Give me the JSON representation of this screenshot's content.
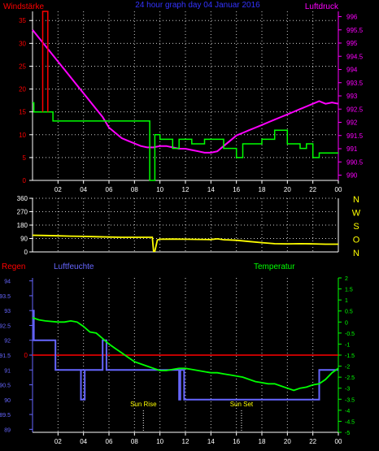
{
  "chart_data": [
    {
      "type": "line",
      "title": "24 hour graph day 04 Januar 2016",
      "left_axis_label": "Windstärke",
      "right_axis_label": "Luftdruck",
      "colors": {
        "wind": "#ff0000",
        "gust": "#00ff00",
        "pressure": "#ff00ff",
        "title": "#3333ff",
        "axis": "#ffffff"
      },
      "x_ticks": [
        "02",
        "04",
        "06",
        "08",
        "10",
        "12",
        "14",
        "16",
        "18",
        "20",
        "22",
        "00"
      ],
      "left_ticks": [
        "0",
        "5",
        "10",
        "15",
        "20",
        "25",
        "30",
        "35"
      ],
      "left_range": [
        0,
        37
      ],
      "right_ticks": [
        "990",
        "990.5",
        "991",
        "991.5",
        "992",
        "992.5",
        "993",
        "993.5",
        "994",
        "994.5",
        "995",
        "995.5",
        "996"
      ],
      "right_range": [
        989.8,
        996.2
      ],
      "x_range": [
        0,
        24
      ],
      "series": [
        {
          "key": "pressure",
          "x": [
            0,
            0.5,
            1,
            1.5,
            2,
            2.5,
            3,
            3.5,
            4,
            4.5,
            5,
            5.5,
            6,
            6.5,
            7,
            7.5,
            8,
            8.5,
            9,
            9.5,
            10,
            10.5,
            11,
            11.5,
            12,
            12.5,
            13,
            13.5,
            14,
            14.5,
            15,
            15.5,
            16,
            16.5,
            17,
            17.5,
            18,
            18.5,
            19,
            19.5,
            20,
            20.5,
            21,
            21.5,
            22,
            22.5,
            23,
            23.5,
            24
          ],
          "y": [
            995.5,
            995.2,
            994.9,
            994.6,
            994.3,
            994.0,
            993.7,
            993.4,
            993.1,
            992.8,
            992.5,
            992.2,
            991.8,
            991.6,
            991.4,
            991.3,
            991.2,
            991.1,
            991.05,
            991.05,
            991.1,
            991.1,
            991.05,
            991.0,
            991.0,
            990.95,
            990.9,
            990.85,
            990.85,
            990.9,
            991.1,
            991.3,
            991.5,
            991.6,
            991.7,
            991.8,
            991.9,
            992.0,
            992.1,
            992.2,
            992.3,
            992.4,
            992.5,
            992.6,
            992.7,
            992.8,
            992.7,
            992.75,
            992.7
          ]
        },
        {
          "key": "gust",
          "x": [
            0,
            0.1,
            0.1,
            1.6,
            1.6,
            9.2,
            9.2,
            9.6,
            9.6,
            10,
            10,
            11,
            11,
            11.5,
            11.5,
            12.5,
            12.5,
            13.5,
            13.5,
            15,
            15,
            16,
            16,
            16.5,
            16.5,
            18,
            18,
            19,
            19,
            20,
            20,
            21,
            21,
            21.5,
            21.5,
            22,
            22,
            22.5,
            22.5,
            24
          ],
          "y": [
            17,
            17,
            15,
            15,
            13,
            13,
            0,
            0,
            10,
            10,
            9,
            9,
            7,
            7,
            9,
            9,
            8,
            8,
            9,
            9,
            7,
            7,
            5,
            5,
            8,
            8,
            9,
            9,
            11,
            11,
            8,
            8,
            7,
            7,
            8,
            8,
            5,
            5,
            6,
            6
          ]
        },
        {
          "key": "wind",
          "x": [
            0.8,
            0.8,
            1.2,
            1.2
          ],
          "y": [
            15,
            37,
            37,
            15
          ]
        }
      ]
    },
    {
      "type": "line",
      "y_ticks": [
        "0",
        "90",
        "180",
        "270",
        "360"
      ],
      "y_range": [
        0,
        360
      ],
      "right_labels": [
        "N",
        "W",
        "S",
        "O",
        "N"
      ],
      "colors": {
        "line": "#ffff00",
        "letters": "#ffff00"
      },
      "series": [
        {
          "key": "direction",
          "x": [
            0,
            1,
            2,
            3,
            4,
            5,
            6,
            7,
            8,
            9,
            9.4,
            9.5,
            9.6,
            9.8,
            10,
            11,
            12,
            13,
            14,
            14.5,
            15,
            15.5,
            16,
            17,
            18,
            19,
            20,
            21,
            22,
            23,
            24
          ],
          "y": [
            112,
            110,
            108,
            106,
            104,
            102,
            100,
            98,
            98,
            98,
            98,
            5,
            5,
            80,
            85,
            86,
            85,
            84,
            83,
            88,
            82,
            80,
            78,
            70,
            62,
            55,
            54,
            55,
            54,
            52,
            52
          ]
        }
      ]
    },
    {
      "type": "line",
      "left_axis_label": "Regen",
      "humidity_label": "Luftfeuchte",
      "temperature_label": "Temperatur",
      "colors": {
        "rain": "#ff0000",
        "humidity": "#6666ff",
        "temperature": "#00ff00",
        "sun": "#ffff00"
      },
      "humidity_ticks": [
        "89",
        "89.5",
        "90",
        "90.5",
        "91",
        "91.5",
        "92",
        "92.5",
        "93",
        "93.5",
        "94"
      ],
      "humidity_range": [
        88.9,
        94.1
      ],
      "rain_tick": "0",
      "temperature_ticks": [
        "2",
        "1.5",
        "1",
        "0.5",
        "0",
        "-0.5",
        "-1",
        "-1.5",
        "-2",
        "-2.5",
        "-3",
        "-3.5",
        "-4",
        "-4.5",
        "-5"
      ],
      "temperature_range": [
        -5,
        2
      ],
      "sun_rise_label": "Sun Rise",
      "sun_set_label": "Sun Set",
      "sun_rise_hour": 8.7,
      "sun_set_hour": 16.4,
      "rain_value": 0,
      "series": [
        {
          "key": "humidity",
          "x": [
            0,
            0.1,
            0.1,
            1.8,
            1.8,
            5.5,
            5.5,
            5.8,
            5.8,
            6,
            6,
            11.5,
            11.5,
            11.6,
            11.6,
            11.9,
            11.9,
            22.5,
            22.5,
            24
          ],
          "y": [
            93,
            93,
            92,
            92,
            91,
            91,
            92,
            92,
            91,
            91,
            91,
            91,
            90,
            90,
            91,
            91,
            90,
            90,
            91,
            91
          ]
        },
        {
          "key": "humidity_spike",
          "x": [
            3.8,
            3.8,
            4.1,
            4.1
          ],
          "y": [
            91,
            90,
            90,
            91
          ]
        },
        {
          "key": "temperature",
          "x": [
            0,
            0.5,
            1,
            2,
            2.5,
            3,
            3.5,
            4,
            4.5,
            5,
            5.5,
            6,
            6.5,
            7,
            7.5,
            8,
            8.5,
            9,
            9.5,
            10,
            10.5,
            11,
            11.5,
            12,
            12.5,
            13,
            13.5,
            14,
            14.5,
            15,
            15.5,
            16,
            16.5,
            17,
            17.5,
            18,
            18.5,
            19,
            19.5,
            20,
            20.5,
            21,
            21.5,
            22,
            22.5,
            23,
            23.5,
            24
          ],
          "y": [
            0.2,
            0.1,
            0.05,
            0,
            0,
            0.05,
            0,
            -0.2,
            -0.45,
            -0.5,
            -0.75,
            -1,
            -1.2,
            -1.4,
            -1.6,
            -1.8,
            -1.9,
            -2,
            -2.1,
            -2.2,
            -2.2,
            -2.15,
            -2.1,
            -2.1,
            -2.15,
            -2.2,
            -2.25,
            -2.3,
            -2.3,
            -2.35,
            -2.4,
            -2.45,
            -2.5,
            -2.6,
            -2.7,
            -2.75,
            -2.8,
            -2.8,
            -2.9,
            -3.0,
            -3.1,
            -3.0,
            -2.95,
            -2.85,
            -2.8,
            -2.6,
            -2.3,
            -2.1
          ]
        }
      ]
    }
  ]
}
